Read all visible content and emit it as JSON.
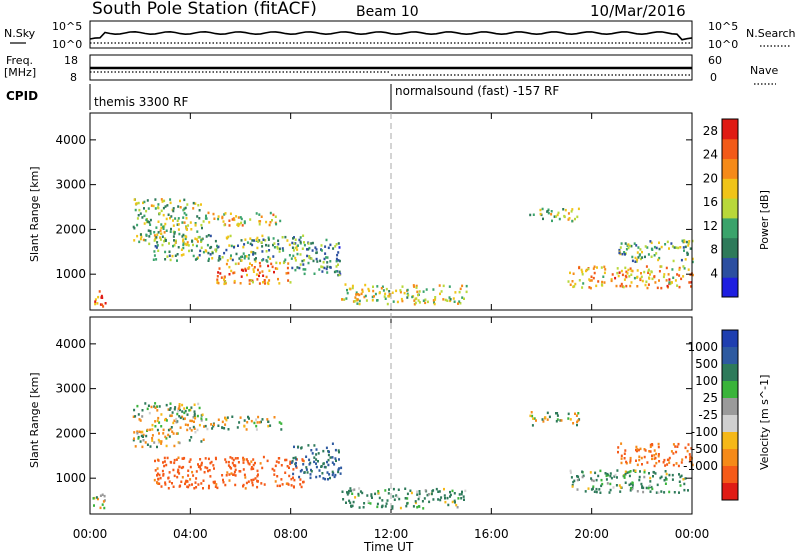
{
  "header": {
    "station_title": "South Pole Station (fitACF)",
    "beam_label": "Beam 10",
    "date_label": "10/Mar/2016"
  },
  "top_panels": {
    "nsky_label": "N.Sky",
    "nsearch_label": "N.Search",
    "noise_tick_top": "10^5",
    "noise_tick_bottom": "10^0",
    "noise_tick_top_r": "10^5",
    "noise_tick_bottom_r": "10^0",
    "freq_label": "Freq.",
    "freq_unit": "[MHz]",
    "freq_ticks": [
      "18",
      "8"
    ],
    "nave_label": "Nave",
    "nave_ticks": [
      "60",
      "0"
    ],
    "cpid_label": "CPID",
    "cpid_segments": [
      {
        "text": "themis 3300 RF",
        "start_hour": 0,
        "end_hour": 12
      },
      {
        "text": "normalsound (fast) -157 RF",
        "start_hour": 12,
        "end_hour": 24
      }
    ]
  },
  "chart_data": [
    {
      "type": "heatmap",
      "title": "",
      "xlabel": "",
      "ylabel": "Slant Range [km]",
      "xlim": [
        0,
        24
      ],
      "ylim": [
        200,
        4600
      ],
      "ytick_labels": [
        "1000",
        "2000",
        "3000",
        "4000"
      ],
      "yticks": [
        1000,
        2000,
        3000,
        4000
      ],
      "colorbar": {
        "label": "Power [dB]",
        "ticks": [
          "4",
          "8",
          "12",
          "16",
          "20",
          "24",
          "28"
        ],
        "tick_values": [
          4,
          8,
          12,
          16,
          20,
          24,
          28
        ],
        "range": [
          0,
          30
        ],
        "colors": [
          "#1f1fe0",
          "#2c4fa0",
          "#2e7a5a",
          "#3aa36b",
          "#b8d83a",
          "#f0c419",
          "#f58a18",
          "#f25a18",
          "#e01b14"
        ]
      },
      "scatter_bands": [
        {
          "start_hour": 0.0,
          "end_hour": 0.6,
          "range_low": 300,
          "range_high": 700,
          "value": 24
        },
        {
          "start_hour": 1.7,
          "end_hour": 4.5,
          "range_low": 1700,
          "range_high": 2700,
          "value": 14
        },
        {
          "start_hour": 4.5,
          "end_hour": 7.6,
          "range_low": 2100,
          "range_high": 2400,
          "value": 18
        },
        {
          "start_hour": 2.5,
          "end_hour": 8.5,
          "range_low": 1300,
          "range_high": 1900,
          "value": 12
        },
        {
          "start_hour": 5.0,
          "end_hour": 8.0,
          "range_low": 800,
          "range_high": 1300,
          "value": 22
        },
        {
          "start_hour": 8.0,
          "end_hour": 10.0,
          "range_low": 1000,
          "range_high": 1800,
          "value": 10
        },
        {
          "start_hour": 10.0,
          "end_hour": 15.0,
          "range_low": 350,
          "range_high": 800,
          "value": 16
        },
        {
          "start_hour": 17.5,
          "end_hour": 19.5,
          "range_low": 2200,
          "range_high": 2500,
          "value": 14
        },
        {
          "start_hour": 19.0,
          "end_hour": 24.0,
          "range_low": 700,
          "range_high": 1200,
          "value": 20
        },
        {
          "start_hour": 21.0,
          "end_hour": 24.0,
          "range_low": 1300,
          "range_high": 1800,
          "value": 12
        }
      ]
    },
    {
      "type": "heatmap",
      "title": "",
      "xlabel": "Time UT",
      "ylabel": "Slant Range [km]",
      "xlim": [
        0,
        24
      ],
      "ylim": [
        200,
        4600
      ],
      "xtick_labels": [
        "00:00",
        "04:00",
        "08:00",
        "12:00",
        "16:00",
        "20:00",
        "00:00"
      ],
      "xticks": [
        0,
        4,
        8,
        12,
        16,
        20,
        24
      ],
      "ytick_labels": [
        "1000",
        "2000",
        "3000",
        "4000"
      ],
      "yticks": [
        1000,
        2000,
        3000,
        4000
      ],
      "colorbar": {
        "label": "Velocity [m s^-1]",
        "ticks": [
          "1000",
          "500",
          "100",
          "25",
          "-25",
          "-100",
          "-500",
          "-1000"
        ],
        "colors": [
          "#1f3fb0",
          "#2e5aa0",
          "#2e7a5a",
          "#3ab43a",
          "#9a9a9a",
          "#d0d0d0",
          "#f5b818",
          "#f58a18",
          "#f55a18",
          "#e01b14"
        ]
      },
      "scatter_bands": [
        {
          "start_hour": 0.0,
          "end_hour": 0.6,
          "range_low": 300,
          "range_high": 700,
          "value": -100
        },
        {
          "start_hour": 1.7,
          "end_hour": 4.5,
          "range_low": 1700,
          "range_high": 2700,
          "value": 0
        },
        {
          "start_hour": 4.5,
          "end_hour": 7.6,
          "range_low": 2100,
          "range_high": 2400,
          "value": 0
        },
        {
          "start_hour": 2.5,
          "end_hour": 8.5,
          "range_low": 800,
          "range_high": 1500,
          "value": -700
        },
        {
          "start_hour": 8.0,
          "end_hour": 10.0,
          "range_low": 1000,
          "range_high": 1800,
          "value": 600
        },
        {
          "start_hour": 10.0,
          "end_hour": 15.0,
          "range_low": 350,
          "range_high": 800,
          "value": 200
        },
        {
          "start_hour": 17.5,
          "end_hour": 19.5,
          "range_low": 2200,
          "range_high": 2500,
          "value": 0
        },
        {
          "start_hour": 19.0,
          "end_hour": 24.0,
          "range_low": 700,
          "range_high": 1200,
          "value": 200
        },
        {
          "start_hour": 21.0,
          "end_hour": 24.0,
          "range_low": 1300,
          "range_high": 1800,
          "value": -500
        }
      ]
    }
  ]
}
